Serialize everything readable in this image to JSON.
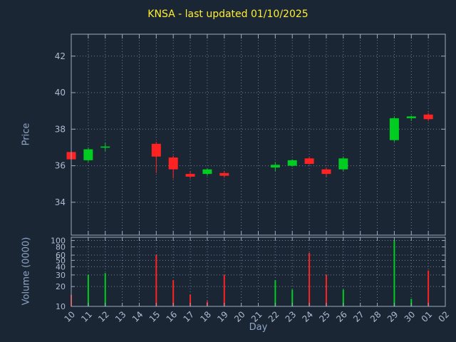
{
  "colors": {
    "background": "#1a2634",
    "up": "#00cc22",
    "down": "#ff2222",
    "border": "#9aa9bd",
    "tick_text": "#aebcd2",
    "axis_title": "#8fa6c8",
    "title_text": "#ffee33",
    "grid": "#6e7f99"
  },
  "chart_data": {
    "type": "candlestick",
    "title": "KNSA - last updated 01/10/2025",
    "xlabel": "Day",
    "price_ylabel": "Price",
    "volume_ylabel": "Volume (0000)",
    "x_ticklabels": [
      "10",
      "11",
      "12",
      "13",
      "14",
      "15",
      "16",
      "17",
      "18",
      "19",
      "20",
      "21",
      "22",
      "23",
      "24",
      "25",
      "26",
      "27",
      "28",
      "29",
      "30",
      "01",
      "02"
    ],
    "price_ticks": [
      34,
      36,
      38,
      40,
      42
    ],
    "price_range": [
      32.2,
      43.2
    ],
    "volume_ticks": [
      10,
      20,
      30,
      40,
      50,
      60,
      80,
      100
    ],
    "volume_scale": "log",
    "volume_range": [
      10,
      112
    ],
    "candles": [
      {
        "day": "10",
        "open": 36.75,
        "high": 36.85,
        "low": 36.3,
        "close": 36.35,
        "volume": 15
      },
      {
        "day": "11",
        "open": 36.3,
        "high": 37.0,
        "low": 36.2,
        "close": 36.9,
        "volume": 30
      },
      {
        "day": "12",
        "open": 37.0,
        "high": 37.25,
        "low": 36.8,
        "close": 37.05,
        "volume": 32
      },
      {
        "day": "15",
        "open": 37.2,
        "high": 37.3,
        "low": 35.6,
        "close": 36.5,
        "volume": 60
      },
      {
        "day": "16",
        "open": 36.45,
        "high": 36.55,
        "low": 35.3,
        "close": 35.8,
        "volume": 25
      },
      {
        "day": "17",
        "open": 35.55,
        "high": 35.7,
        "low": 35.3,
        "close": 35.4,
        "volume": 15
      },
      {
        "day": "18",
        "open": 35.55,
        "high": 35.85,
        "low": 35.45,
        "close": 35.8,
        "volume": 12,
        "volume_color": "down"
      },
      {
        "day": "19",
        "open": 35.6,
        "high": 35.7,
        "low": 35.35,
        "close": 35.45,
        "volume": 30
      },
      {
        "day": "22",
        "open": 35.9,
        "high": 36.2,
        "low": 35.7,
        "close": 36.05,
        "volume": 25
      },
      {
        "day": "23",
        "open": 36.0,
        "high": 36.35,
        "low": 35.95,
        "close": 36.3,
        "volume": 18
      },
      {
        "day": "24",
        "open": 36.4,
        "high": 36.5,
        "low": 36.05,
        "close": 36.1,
        "volume": 65
      },
      {
        "day": "25",
        "open": 35.8,
        "high": 35.9,
        "low": 35.4,
        "close": 35.55,
        "volume": 30
      },
      {
        "day": "26",
        "open": 35.8,
        "high": 36.5,
        "low": 35.7,
        "close": 36.4,
        "volume": 18
      },
      {
        "day": "29",
        "open": 37.4,
        "high": 38.7,
        "low": 37.3,
        "close": 38.6,
        "volume": 100
      },
      {
        "day": "30",
        "open": 38.6,
        "high": 38.75,
        "low": 38.45,
        "close": 38.7,
        "volume": 13
      },
      {
        "day": "01",
        "open": 38.8,
        "high": 38.9,
        "low": 38.45,
        "close": 38.55,
        "volume": 35
      }
    ]
  }
}
